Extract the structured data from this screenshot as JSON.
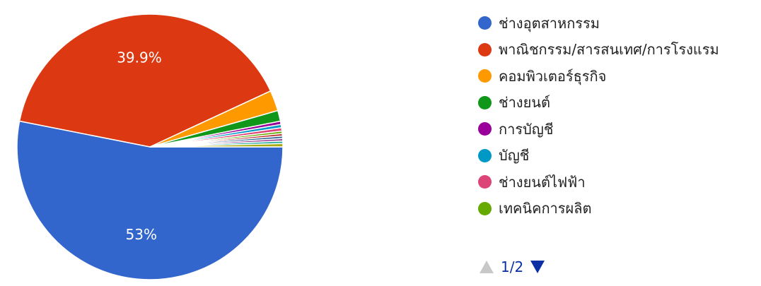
{
  "chart_data": {
    "type": "pie",
    "slices": [
      {
        "label": "ช่างอุตสาหกรรม",
        "value": 53.0,
        "color": "#3366cc",
        "display": "53%"
      },
      {
        "label": "พาณิชกรรม/สารสนเทศ/การโรงแรม",
        "value": 39.9,
        "color": "#dc3912",
        "display": "39.9%"
      },
      {
        "label": "คอมพิวเตอร์ธุรกิจ",
        "value": 2.5,
        "color": "#ff9900",
        "display": ""
      },
      {
        "label": "ช่างยนต์",
        "value": 1.3,
        "color": "#109618",
        "display": ""
      },
      {
        "label": "การบัญชี",
        "value": 0.4,
        "color": "#990099",
        "display": ""
      },
      {
        "label": "บัญชี",
        "value": 0.4,
        "color": "#0099c6",
        "display": ""
      },
      {
        "label": "ช่างยนต์ไฟฟ้า",
        "value": 0.4,
        "color": "#dd4477",
        "display": ""
      },
      {
        "label": "เทคนิคการผลิต",
        "value": 0.3,
        "color": "#66aa00",
        "display": ""
      },
      {
        "label": "",
        "value": 0.3,
        "color": "#b82e2e",
        "display": ""
      },
      {
        "label": "",
        "value": 0.3,
        "color": "#316395",
        "display": ""
      },
      {
        "label": "",
        "value": 0.3,
        "color": "#994499",
        "display": ""
      },
      {
        "label": "",
        "value": 0.3,
        "color": "#22aa99",
        "display": ""
      },
      {
        "label": "",
        "value": 0.4,
        "color": "#aaaa11",
        "display": ""
      }
    ],
    "legend_position": "right",
    "legend_visible_count": 8
  },
  "pager": {
    "text": "1/2"
  }
}
